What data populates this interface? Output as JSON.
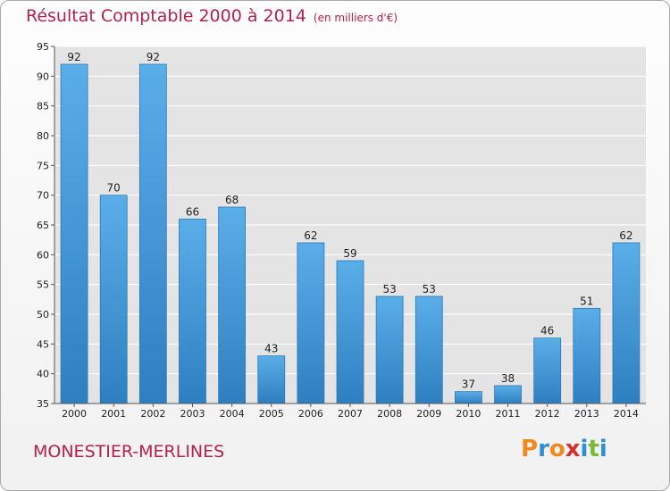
{
  "header": {
    "title": "Résultat Comptable 2000 à 2014",
    "unit_note": "(en milliers d'€)"
  },
  "footer": {
    "city": "MONESTIER-MERLINES",
    "brand": "Proxiti"
  },
  "colors": {
    "title": "#b2224e",
    "bar_light": "#5aaee8",
    "bar_dark": "#2e7fc0",
    "plot_bg": "#e4e4e4",
    "grid": "#ffffff",
    "brand_letters": [
      "#f08a1c",
      "#2f8fd6",
      "#f08a1c",
      "#d62f2f",
      "#2f8fd6",
      "#7ab83a",
      "#2f8fd6"
    ]
  },
  "chart_data": {
    "type": "bar",
    "title": "Résultat Comptable 2000 à 2014",
    "subtitle": "(en milliers d'€)",
    "xlabel": "",
    "ylabel": "",
    "categories": [
      "2000",
      "2001",
      "2002",
      "2003",
      "2004",
      "2005",
      "2006",
      "2007",
      "2008",
      "2009",
      "2010",
      "2011",
      "2012",
      "2013",
      "2014"
    ],
    "values": [
      92,
      70,
      92,
      66,
      68,
      43,
      62,
      59,
      53,
      53,
      37,
      38,
      46,
      51,
      62
    ],
    "ylim": [
      35,
      95
    ],
    "yticks": [
      35,
      40,
      45,
      50,
      55,
      60,
      65,
      70,
      75,
      80,
      85,
      90,
      95
    ],
    "grid": true,
    "data_labels": true
  }
}
